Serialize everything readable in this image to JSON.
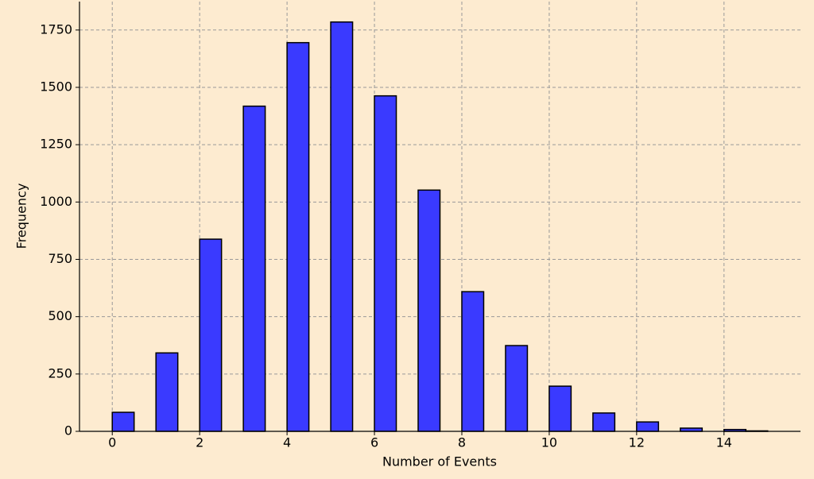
{
  "chart_data": {
    "type": "histogram",
    "x_label": "Number of Events",
    "y_label": "Frequency",
    "bins": [
      0,
      0.5,
      1,
      1.5,
      2,
      2.5,
      3,
      3.5,
      4,
      4.5,
      5,
      5.5,
      6,
      6.5,
      7,
      7.5,
      8,
      8.5,
      9,
      9.5,
      10,
      10.5,
      11,
      11.5,
      12,
      12.5,
      13,
      13.5,
      14,
      14.5,
      15
    ],
    "values": [
      83,
      0,
      342,
      0,
      838,
      0,
      1418,
      0,
      1695,
      0,
      1785,
      0,
      1463,
      0,
      1052,
      0,
      609,
      0,
      374,
      0,
      197,
      0,
      80,
      0,
      41,
      0,
      14,
      0,
      8,
      2
    ],
    "color": "#3a3aff",
    "xlim": [
      -0.75,
      15.75
    ],
    "ylim": [
      0,
      1874
    ],
    "xticks": [
      0,
      2,
      4,
      6,
      8,
      10,
      12,
      14
    ],
    "yticks": [
      0,
      250,
      500,
      750,
      1000,
      1250,
      1500,
      1750
    ],
    "grid": true
  }
}
